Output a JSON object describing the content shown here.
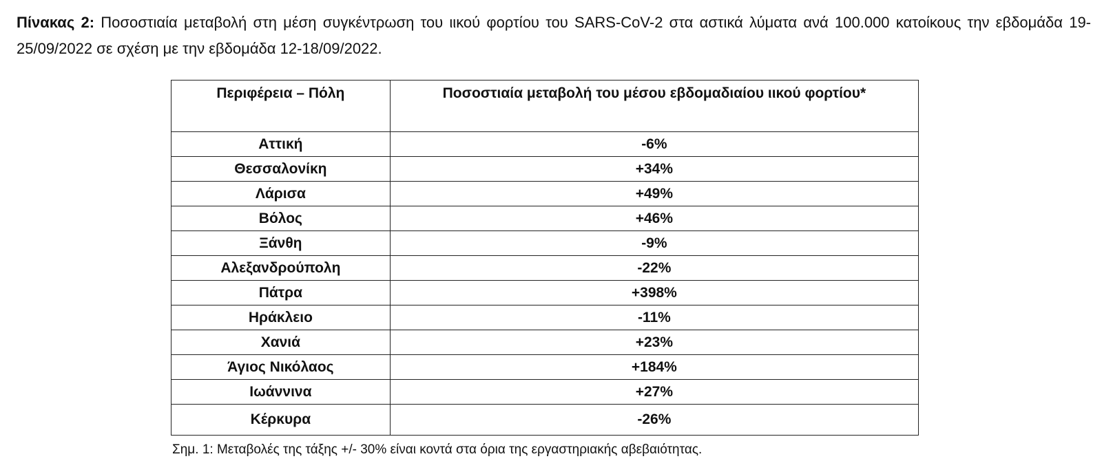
{
  "caption": {
    "lead": "Πίνακας 2:",
    "text": "Ποσοστιαία μεταβολή στη μέση συγκέντρωση του ιικού φορτίου του SARS-CoV-2 στα αστικά λύματα ανά 100.000 κατοίκους την εβδομάδα 19-25/09/2022 σε σχέση με την εβδομάδα 12-18/09/2022."
  },
  "table": {
    "headers": [
      "Περιφέρεια – Πόλη",
      "Ποσοστιαία μεταβολή του μέσου εβδομαδιαίου ιικού φορτίου*"
    ],
    "rows": [
      {
        "city": "Αττική",
        "change": "-6%"
      },
      {
        "city": "Θεσσαλονίκη",
        "change": "+34%"
      },
      {
        "city": "Λάρισα",
        "change": "+49%"
      },
      {
        "city": "Βόλος",
        "change": "+46%"
      },
      {
        "city": "Ξάνθη",
        "change": "-9%"
      },
      {
        "city": "Αλεξανδρούπολη",
        "change": "-22%"
      },
      {
        "city": "Πάτρα",
        "change": "+398%"
      },
      {
        "city": "Ηράκλειο",
        "change": "-11%"
      },
      {
        "city": "Χανιά",
        "change": "+23%"
      },
      {
        "city": "Άγιος Νικόλαος",
        "change": "+184%"
      },
      {
        "city": "Ιωάννινα",
        "change": "+27%"
      },
      {
        "city": "Κέρκυρα",
        "change": "-26%"
      }
    ]
  },
  "note": "Σημ. 1: Μεταβολές της τάξης +/- 30% είναι κοντά στα όρια της εργαστηριακής αβεβαιότητας."
}
